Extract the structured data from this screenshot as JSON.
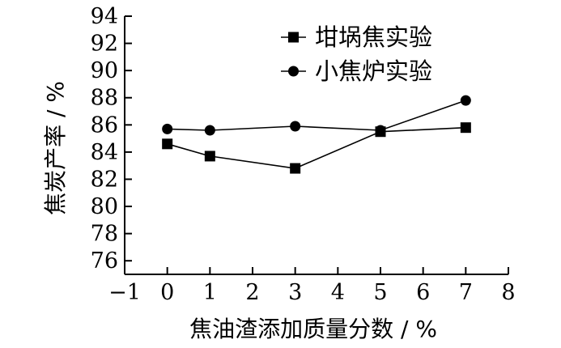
{
  "chart_data": {
    "type": "line",
    "title": "",
    "xlabel": "焦油渣添加质量分数 / %",
    "ylabel": "焦炭产率 / %",
    "xlim": [
      -1,
      8
    ],
    "ylim": [
      75,
      94
    ],
    "x_ticks": [
      "−1",
      "0",
      "1",
      "2",
      "3",
      "4",
      "5",
      "6",
      "7",
      "8"
    ],
    "y_ticks": [
      "76",
      "78",
      "80",
      "82",
      "84",
      "86",
      "88",
      "90",
      "92",
      "94"
    ],
    "grid": false,
    "legend_position": "top-right",
    "series": [
      {
        "name": "坩埚焦实验",
        "marker": "square",
        "color": "#000000",
        "x": [
          0,
          1,
          3,
          5,
          7
        ],
        "values": [
          84.6,
          83.7,
          82.8,
          85.5,
          85.8
        ]
      },
      {
        "name": "小焦炉实验",
        "marker": "circle",
        "color": "#000000",
        "x": [
          0,
          1,
          3,
          5,
          7
        ],
        "values": [
          85.7,
          85.6,
          85.9,
          85.6,
          87.8
        ]
      }
    ]
  }
}
